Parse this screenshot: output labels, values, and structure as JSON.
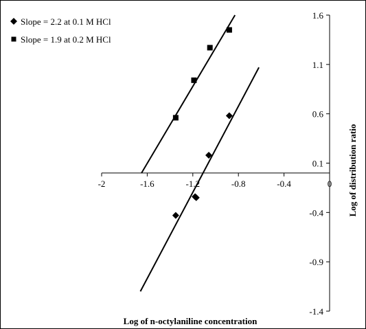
{
  "chart_data": {
    "type": "scatter",
    "xlabel": "Log of n-octylaniline concentration",
    "ylabel": "Log of distribution ratio",
    "xlim": [
      -2,
      0
    ],
    "ylim": [
      -1.4,
      1.6
    ],
    "xticks": [
      -2,
      -1.6,
      -1.2,
      -0.8,
      -0.4,
      0
    ],
    "xtick_labels": [
      "-2",
      "-1.6",
      "-1.2",
      "-0.8",
      "-0.4",
      "0"
    ],
    "yticks": [
      1.6,
      1.1,
      0.6,
      0.1,
      -0.4,
      -0.9,
      -1.4
    ],
    "ytick_labels": [
      "1.6",
      "1.1",
      "0.6",
      "0.1",
      "-0.4",
      "-0.9",
      "-1.4"
    ],
    "legend_position": "top-left",
    "series": [
      {
        "name": "Slope = 2.2 at 0.1 M HCl",
        "marker": "diamond",
        "color": "#000000",
        "x": [
          -1.35,
          -1.18,
          -1.17,
          -1.06,
          -0.88
        ],
        "y": [
          -0.43,
          -0.24,
          -0.25,
          0.18,
          0.58
        ],
        "fit": {
          "x": [
            -1.66,
            -0.62
          ],
          "y": [
            -1.2,
            1.07
          ]
        }
      },
      {
        "name": "Slope = 1.9 at 0.2 M HCl",
        "marker": "square",
        "color": "#000000",
        "x": [
          -1.35,
          -1.19,
          -1.05,
          -0.88
        ],
        "y": [
          0.56,
          0.94,
          1.27,
          1.45
        ],
        "fit": {
          "x": [
            -1.65,
            -0.83
          ],
          "y": [
            0.0,
            1.6
          ]
        }
      }
    ]
  }
}
